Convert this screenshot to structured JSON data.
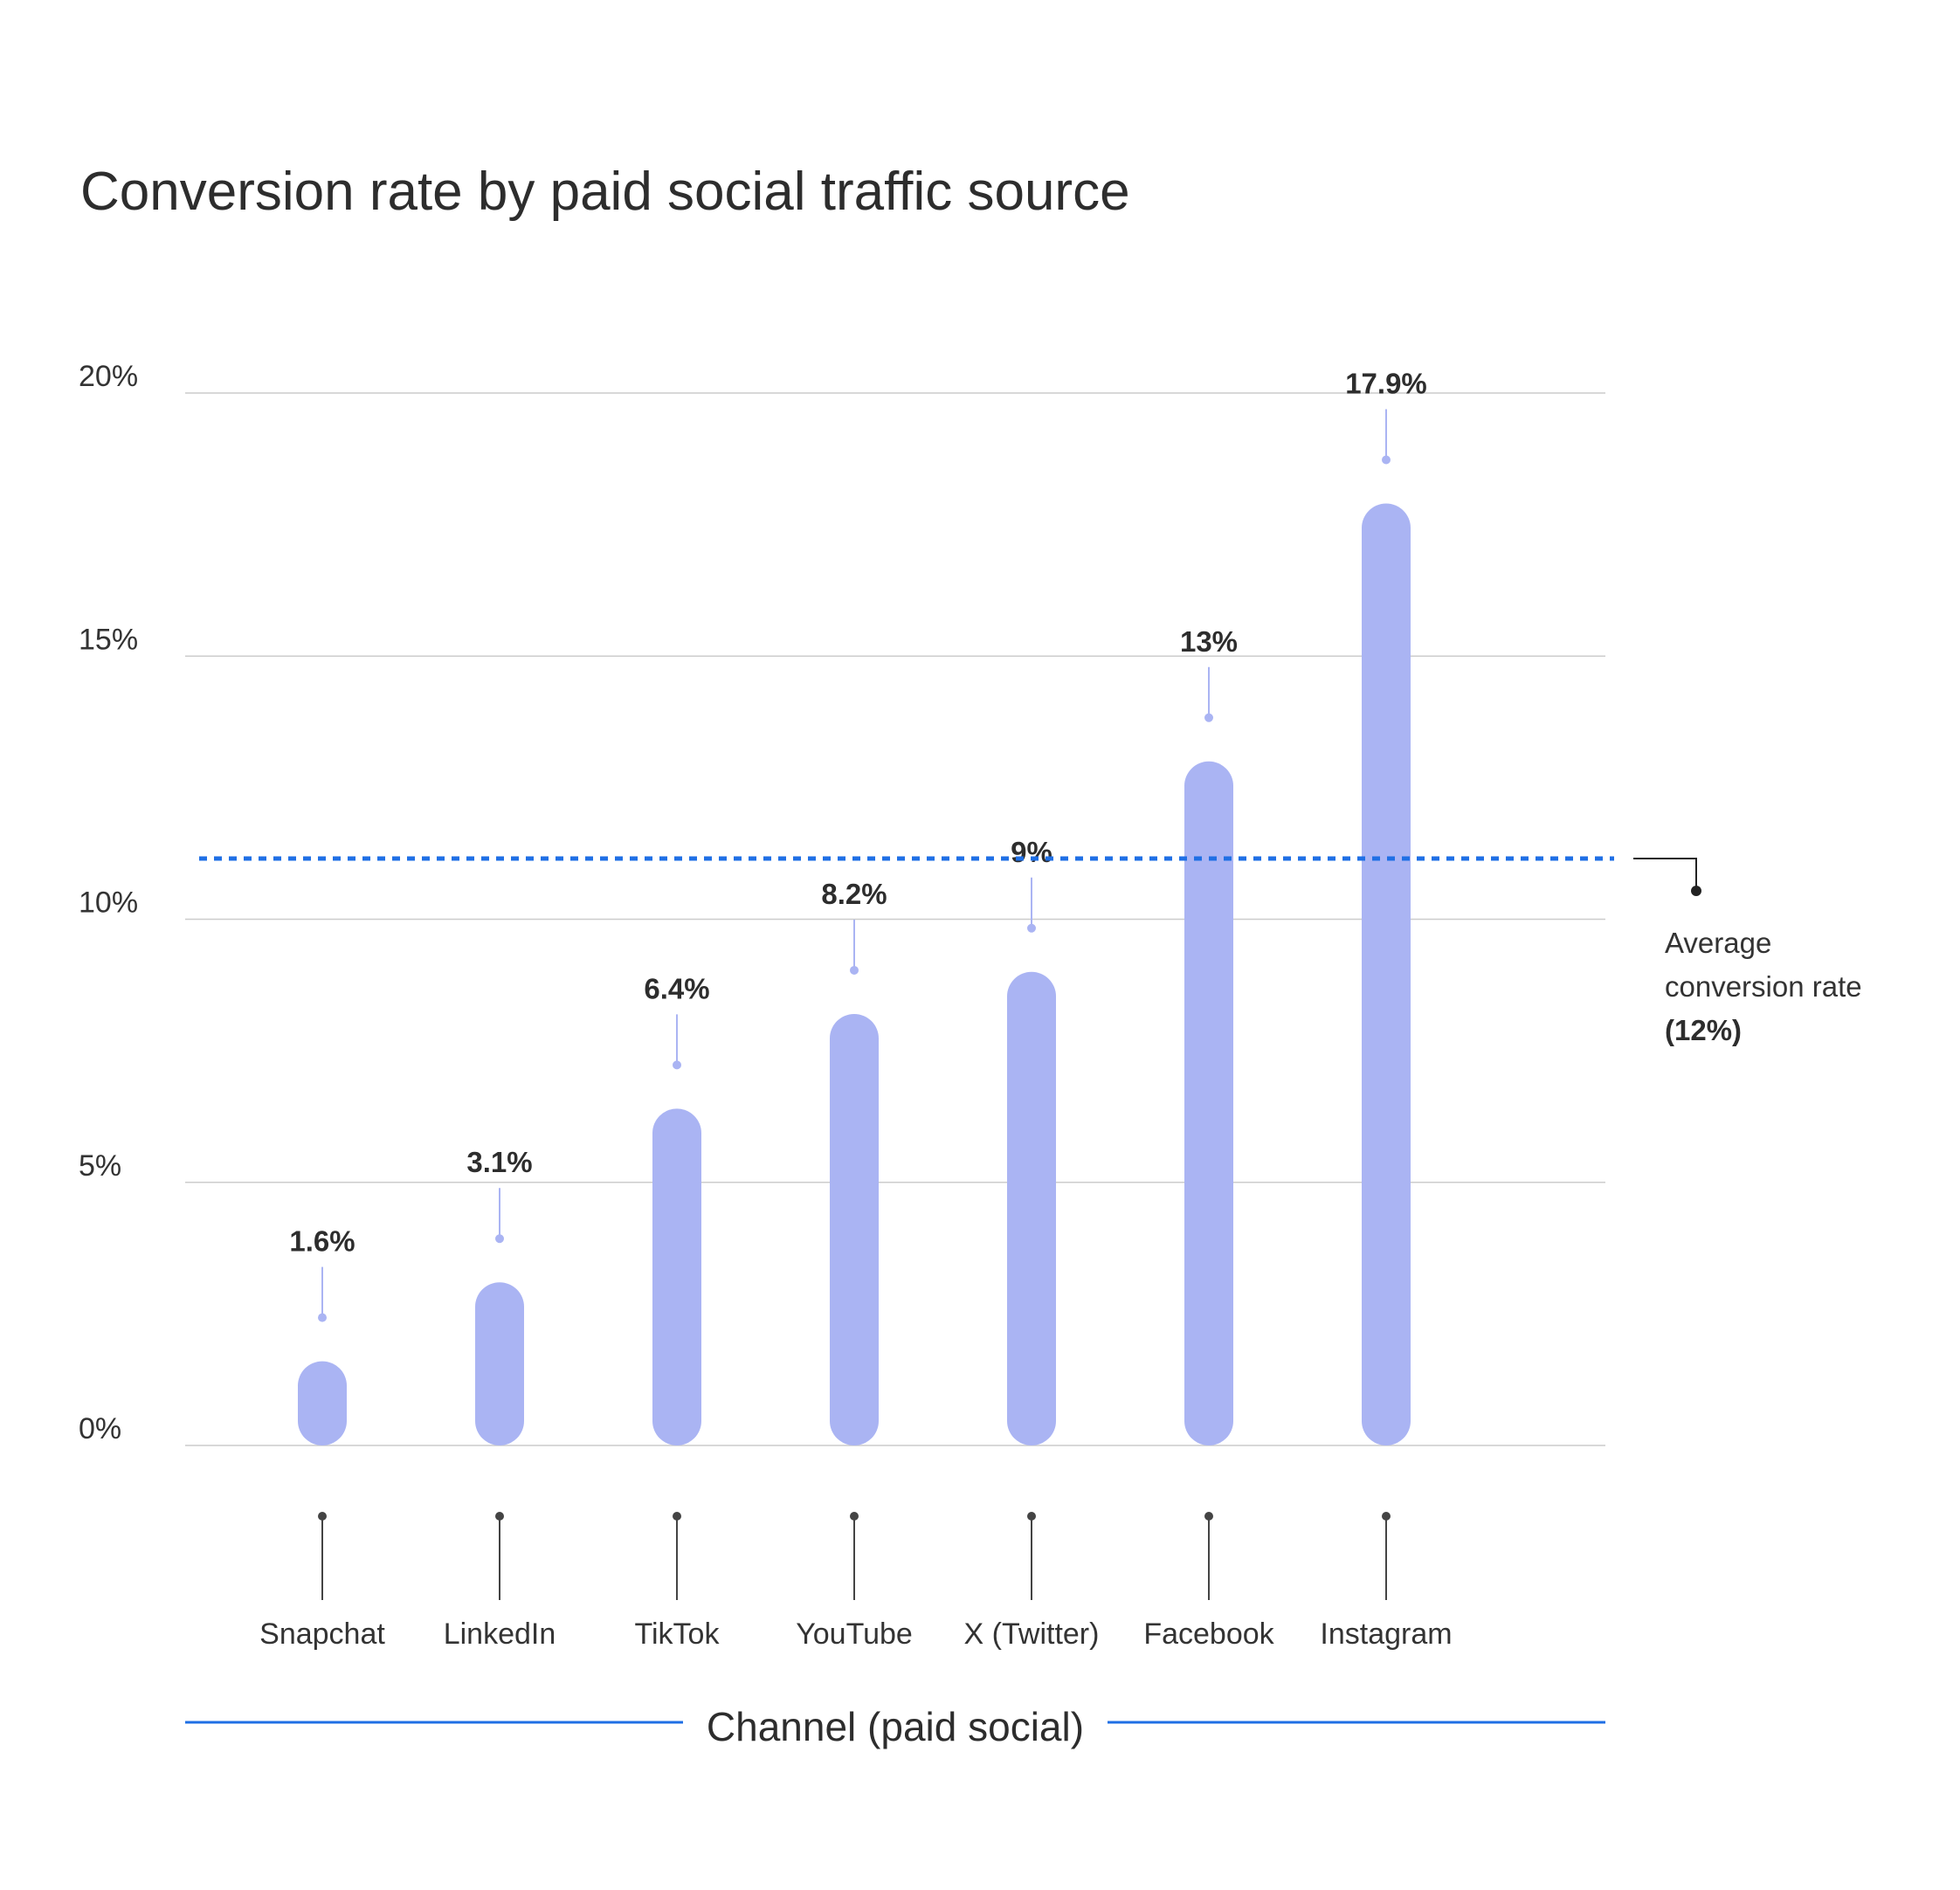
{
  "chart_data": {
    "type": "bar",
    "title": "Conversion rate by paid social traffic source",
    "xlabel": "Channel (paid social)",
    "ylabel": "",
    "ylim": [
      0,
      20
    ],
    "y_ticks": [
      "0%",
      "5%",
      "10%",
      "15%",
      "20%"
    ],
    "y_tick_values": [
      0,
      5,
      10,
      15,
      20
    ],
    "categories": [
      "Snapchat",
      "LinkedIn",
      "TikTok",
      "YouTube",
      "X (Twitter)",
      "Facebook",
      "Instagram"
    ],
    "values": [
      1.6,
      3.1,
      6.4,
      8.2,
      9,
      13,
      17.9
    ],
    "value_labels": [
      "1.6%",
      "3.1%",
      "6.4%",
      "8.2%",
      "9%",
      "13%",
      "17.9%"
    ],
    "reference_line": {
      "value": 12,
      "label_lines": [
        "Average",
        "conversion rate"
      ],
      "label_value": "(12%)"
    },
    "grid": true,
    "colors": {
      "bar": "#aab4f3",
      "average_line": "#1f6fe5",
      "axis_rule": "#1f6fe5",
      "grid": "#cccccc",
      "leader": "#444444"
    }
  }
}
